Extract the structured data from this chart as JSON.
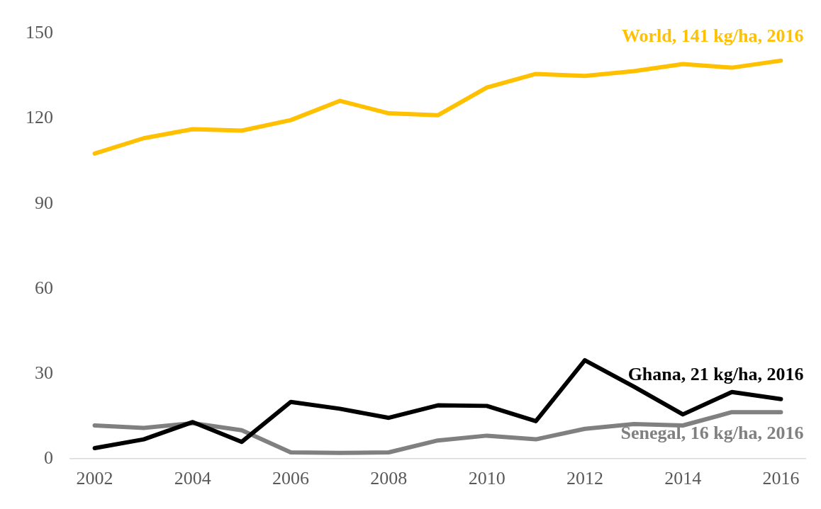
{
  "chart_data": {
    "type": "line",
    "categories": [
      "2002",
      null,
      "2004",
      null,
      "2006",
      null,
      "2008",
      null,
      "2010",
      null,
      "2012",
      null,
      "2014",
      null,
      "2016"
    ],
    "ylim": [
      0,
      150
    ],
    "yticks": [
      0,
      30,
      60,
      90,
      120,
      150
    ],
    "grid": false,
    "legend": false,
    "marker": "none",
    "line_style": "solid",
    "series": [
      {
        "name": "World, 141 kg/ha, 2016",
        "color": "#ffc000",
        "values": [
          107.7,
          113.1,
          116.3,
          115.8,
          119.5,
          126.3,
          121.9,
          121.2,
          131,
          135.8,
          135.1,
          136.8,
          139.3,
          138,
          140.5
        ]
      },
      {
        "name": "Ghana, 21 kg/ha, 2016",
        "color": "#000000",
        "values": [
          3.7,
          6.8,
          12.9,
          5.9,
          20,
          17.6,
          14.4,
          18.8,
          18.6,
          13.2,
          34.7,
          25.4,
          15.6,
          23.5,
          21
        ]
      },
      {
        "name": "Senegal, 16 kg/ha, 2016",
        "color": "#808080",
        "values": [
          11.7,
          10.8,
          12.5,
          10,
          2.2,
          2,
          2.2,
          6.4,
          8.1,
          6.8,
          10.5,
          12.2,
          11.7,
          16.4,
          16.4
        ]
      }
    ]
  }
}
